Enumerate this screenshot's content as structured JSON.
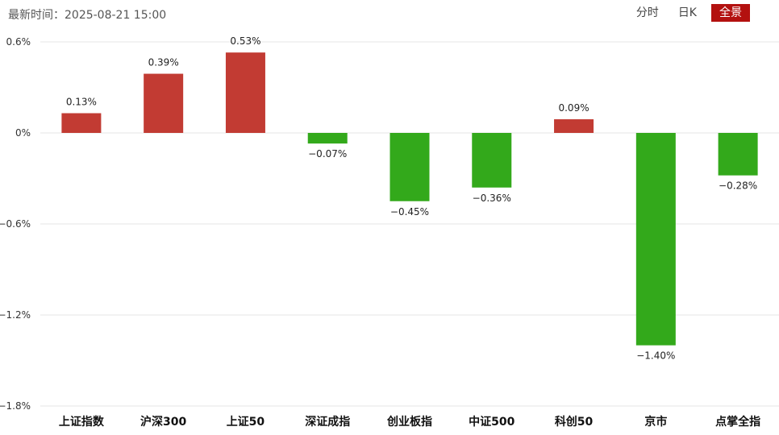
{
  "header": {
    "update_time": "最新时间：2025-08-21 15:00",
    "tabs": [
      {
        "label": "分时",
        "active": false
      },
      {
        "label": "日K",
        "active": false
      },
      {
        "label": "全景",
        "active": true
      }
    ],
    "active_color": "#b3110f"
  },
  "chart_data": {
    "type": "bar",
    "title": "",
    "xlabel": "",
    "ylabel": "",
    "categories": [
      "上证指数",
      "沪深300",
      "上证50",
      "深证成指",
      "创业板指",
      "中证500",
      "科创50",
      "京市",
      "点掌全指"
    ],
    "values": [
      0.13,
      0.39,
      0.53,
      -0.07,
      -0.45,
      -0.36,
      0.09,
      -1.4,
      -0.28
    ],
    "value_labels": [
      "0.13%",
      "0.39%",
      "0.53%",
      "−0.07%",
      "−0.45%",
      "−0.36%",
      "0.09%",
      "−1.40%",
      "−0.28%"
    ],
    "ylim": [
      -1.8,
      0.6
    ],
    "yticks": [
      0.6,
      0,
      -0.6,
      -1.2,
      -1.8
    ],
    "ytick_labels": [
      "0.6%",
      "0%",
      "−0.6%",
      "−1.2%",
      "−1.8%"
    ],
    "grid": true,
    "legend": "none",
    "colors": {
      "positive": "#c23b33",
      "negative": "#33a91b",
      "grid": "#e6e6e6"
    }
  }
}
